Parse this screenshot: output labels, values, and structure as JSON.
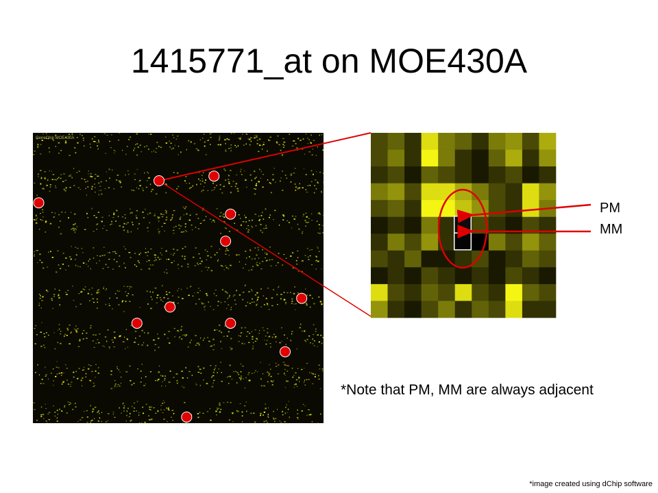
{
  "slide": {
    "title": "1415771_at on MOE430A",
    "note": "*Note that PM, MM are always adjacent",
    "credit": "*image created using dChip software",
    "chip_caption": "GeneChip MOE430A"
  },
  "labels": {
    "pm": "PM",
    "mm": "MM"
  },
  "colors": {
    "marker": "#e00000",
    "pixel_bright": "#f5f500",
    "background": "#000000"
  },
  "chip_probe_markers": [
    {
      "col": 0.434,
      "row": 0.165
    },
    {
      "col": 0.623,
      "row": 0.149
    },
    {
      "col": 0.02,
      "row": 0.241
    },
    {
      "col": 0.68,
      "row": 0.28
    },
    {
      "col": 0.663,
      "row": 0.373
    },
    {
      "col": 0.925,
      "row": 0.57
    },
    {
      "col": 0.472,
      "row": 0.6
    },
    {
      "col": 0.358,
      "row": 0.656
    },
    {
      "col": 0.68,
      "row": 0.656
    },
    {
      "col": 0.868,
      "row": 0.754
    },
    {
      "col": 0.529,
      "row": 0.979
    }
  ],
  "zoom_grid": {
    "cols": 11,
    "rows": 11,
    "intensity": [
      [
        0.3,
        0.4,
        0.2,
        0.9,
        0.5,
        0.4,
        0.2,
        0.5,
        0.6,
        0.3,
        0.7
      ],
      [
        0.3,
        0.5,
        0.2,
        1.0,
        0.5,
        0.2,
        0.1,
        0.4,
        0.7,
        0.2,
        0.6
      ],
      [
        0.2,
        0.3,
        0.1,
        0.4,
        0.3,
        0.2,
        0.1,
        0.2,
        0.3,
        0.1,
        0.2
      ],
      [
        0.5,
        0.6,
        0.3,
        0.9,
        0.9,
        0.7,
        0.5,
        0.3,
        0.2,
        0.9,
        0.6
      ],
      [
        0.3,
        0.4,
        0.2,
        1.0,
        1.0,
        0.8,
        0.6,
        0.3,
        0.2,
        0.9,
        0.5
      ],
      [
        0.1,
        0.2,
        0.1,
        0.5,
        0.2,
        0.1,
        0.3,
        0.2,
        0.1,
        0.3,
        0.2
      ],
      [
        0.2,
        0.5,
        0.3,
        0.6,
        0.2,
        0.15,
        0.0,
        0.5,
        0.3,
        0.6,
        0.4
      ],
      [
        0.3,
        0.2,
        0.4,
        0.1,
        0.1,
        0.2,
        0.3,
        0.1,
        0.2,
        0.4,
        0.3
      ],
      [
        0.1,
        0.2,
        0.1,
        0.3,
        0.2,
        0.1,
        0.2,
        0.1,
        0.3,
        0.2,
        0.1
      ],
      [
        0.9,
        0.3,
        0.2,
        0.4,
        0.3,
        0.9,
        0.3,
        0.2,
        1.0,
        0.4,
        0.3
      ],
      [
        0.6,
        0.2,
        0.1,
        0.3,
        0.5,
        0.2,
        0.4,
        0.3,
        0.9,
        0.2,
        0.2
      ]
    ],
    "pm_cell": {
      "col": 5,
      "row": 5
    },
    "mm_cell": {
      "col": 5,
      "row": 6
    }
  }
}
